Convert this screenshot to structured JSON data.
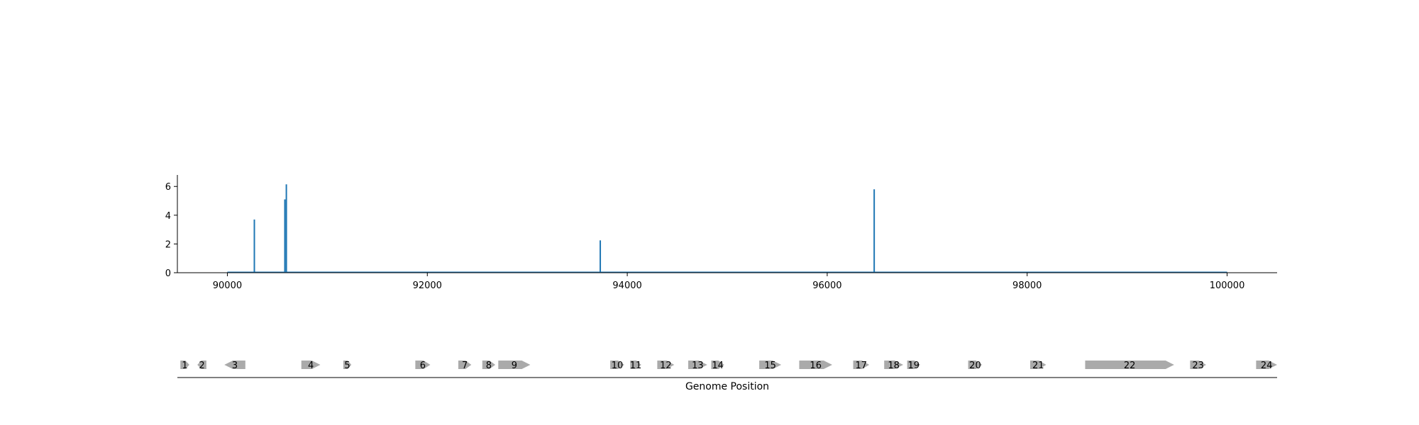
{
  "chart_data": [
    {
      "type": "line",
      "title": "",
      "xlabel": "",
      "ylabel": "",
      "xlim": [
        89500,
        100500
      ],
      "ylim": [
        0,
        6.8
      ],
      "xticks": [
        "90000",
        "92000",
        "94000",
        "96000",
        "98000",
        "100000"
      ],
      "yticks": [
        "0",
        "2",
        "4",
        "6"
      ],
      "color": "#1f77b4",
      "x_range": [
        90000,
        100000
      ],
      "peaks": [
        {
          "x": 90270,
          "y": 3.7
        },
        {
          "x": 90575,
          "y": 5.1
        },
        {
          "x": 90590,
          "y": 6.15
        },
        {
          "x": 93730,
          "y": 2.25
        },
        {
          "x": 96470,
          "y": 5.8
        }
      ],
      "grid": false,
      "legend": "none"
    },
    {
      "type": "gene-map",
      "xlabel": "Genome Position",
      "xlim": [
        89500,
        100500
      ],
      "color": "#aaaaaa",
      "genes": [
        {
          "label": "1",
          "start": 89530,
          "end": 89620,
          "strand": "+"
        },
        {
          "label": "2",
          "start": 89700,
          "end": 89790,
          "strand": "-"
        },
        {
          "label": "3",
          "start": 89970,
          "end": 90180,
          "strand": "-"
        },
        {
          "label": "4",
          "start": 90740,
          "end": 90930,
          "strand": "+"
        },
        {
          "label": "5",
          "start": 91160,
          "end": 91240,
          "strand": "+"
        },
        {
          "label": "6",
          "start": 91880,
          "end": 92030,
          "strand": "+"
        },
        {
          "label": "7",
          "start": 92310,
          "end": 92440,
          "strand": "+"
        },
        {
          "label": "8",
          "start": 92550,
          "end": 92680,
          "strand": "+"
        },
        {
          "label": "9",
          "start": 92710,
          "end": 93030,
          "strand": "+"
        },
        {
          "label": "10",
          "start": 93830,
          "end": 93970,
          "strand": "+"
        },
        {
          "label": "11",
          "start": 94030,
          "end": 94140,
          "strand": "+"
        },
        {
          "label": "12",
          "start": 94300,
          "end": 94470,
          "strand": "+"
        },
        {
          "label": "13",
          "start": 94610,
          "end": 94800,
          "strand": "+"
        },
        {
          "label": "14",
          "start": 94840,
          "end": 94970,
          "strand": "+"
        },
        {
          "label": "15",
          "start": 95320,
          "end": 95540,
          "strand": "+"
        },
        {
          "label": "16",
          "start": 95720,
          "end": 96050,
          "strand": "+"
        },
        {
          "label": "17",
          "start": 96260,
          "end": 96420,
          "strand": "+"
        },
        {
          "label": "18",
          "start": 96570,
          "end": 96760,
          "strand": "+"
        },
        {
          "label": "19",
          "start": 96800,
          "end": 96930,
          "strand": "+"
        },
        {
          "label": "20",
          "start": 97410,
          "end": 97550,
          "strand": "+"
        },
        {
          "label": "21",
          "start": 98030,
          "end": 98190,
          "strand": "+"
        },
        {
          "label": "22",
          "start": 98580,
          "end": 99470,
          "strand": "+"
        },
        {
          "label": "23",
          "start": 99630,
          "end": 99790,
          "strand": "+"
        },
        {
          "label": "24",
          "start": 100290,
          "end": 100500,
          "strand": "+"
        }
      ]
    }
  ]
}
